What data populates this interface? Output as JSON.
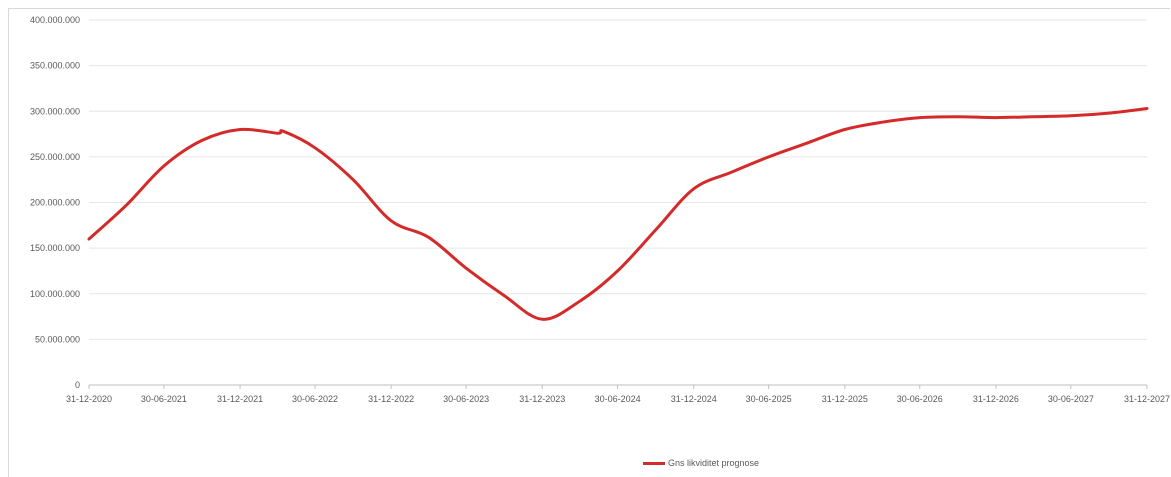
{
  "chart_data": {
    "type": "line",
    "title": "",
    "xlabel": "",
    "ylabel": "",
    "ylim": [
      0,
      400000000
    ],
    "y_ticks": [
      "0",
      "50.000.000",
      "100.000.000",
      "150.000.000",
      "200.000.000",
      "250.000.000",
      "300.000.000",
      "350.000.000",
      "400.000.000"
    ],
    "x_ticks": [
      "31-12-2020",
      "30-06-2021",
      "31-12-2021",
      "30-06-2022",
      "31-12-2022",
      "30-06-2023",
      "31-12-2023",
      "30-06-2024",
      "31-12-2024",
      "30-06-2025",
      "31-12-2025",
      "30-06-2026",
      "31-12-2026",
      "30-06-2027",
      "31-12-2027"
    ],
    "grid": true,
    "legend_position": "bottom",
    "series": [
      {
        "name": "Gns likviditet prognose",
        "color": "#d42a2a",
        "x": [
          "31-12-2020",
          "31-03-2021",
          "30-06-2021",
          "30-09-2021",
          "31-12-2021",
          "31-03-2022",
          "15-04-2022",
          "30-06-2022",
          "30-09-2022",
          "31-12-2022",
          "31-03-2023",
          "30-06-2023",
          "30-09-2023",
          "31-12-2023",
          "31-03-2024",
          "30-06-2024",
          "30-09-2024",
          "31-12-2024",
          "31-03-2025",
          "30-06-2025",
          "30-09-2025",
          "31-12-2025",
          "31-03-2026",
          "30-06-2026",
          "30-09-2026",
          "31-12-2026",
          "31-03-2027",
          "30-06-2027",
          "30-09-2027",
          "31-12-2027"
        ],
        "values": [
          160000000,
          197000000,
          240000000,
          268000000,
          280000000,
          276000000,
          278000000,
          260000000,
          225000000,
          180000000,
          162000000,
          128000000,
          98000000,
          72000000,
          92000000,
          125000000,
          170000000,
          215000000,
          233000000,
          250000000,
          265000000,
          280000000,
          288000000,
          293000000,
          294000000,
          293000000,
          294000000,
          295000000,
          298000000,
          303000000
        ]
      }
    ]
  }
}
